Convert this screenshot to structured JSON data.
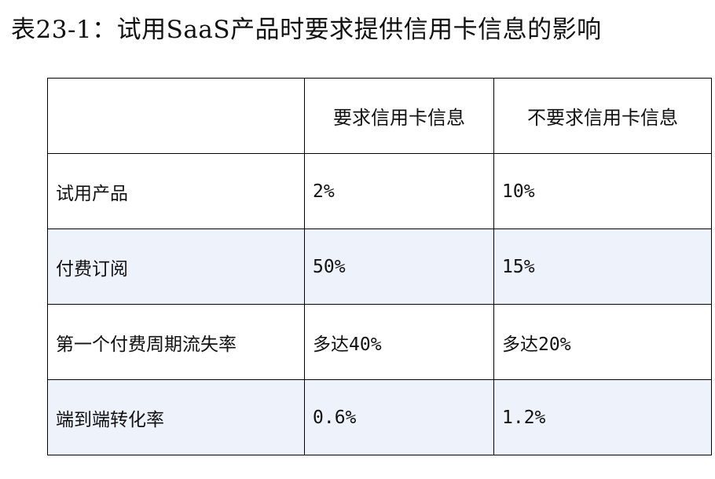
{
  "title": "表23-1：试用SaaS产品时要求提供信用卡信息的影响",
  "table": {
    "header": [
      "",
      "要求信用卡信息",
      "不要求信用卡信息"
    ],
    "rows": [
      {
        "label": "试用产品",
        "requires": "2%",
        "no_requires": "10%"
      },
      {
        "label": "付费订阅",
        "requires": "50%",
        "no_requires": "15%"
      },
      {
        "label": "第一个付费周期流失率",
        "requires": "多达40%",
        "no_requires": "多达20%"
      },
      {
        "label": "端到端转化率",
        "requires": "0.6%",
        "no_requires": "1.2%"
      }
    ]
  },
  "colors": {
    "shaded_row_background": "#edf2fb",
    "border": "#000000"
  }
}
